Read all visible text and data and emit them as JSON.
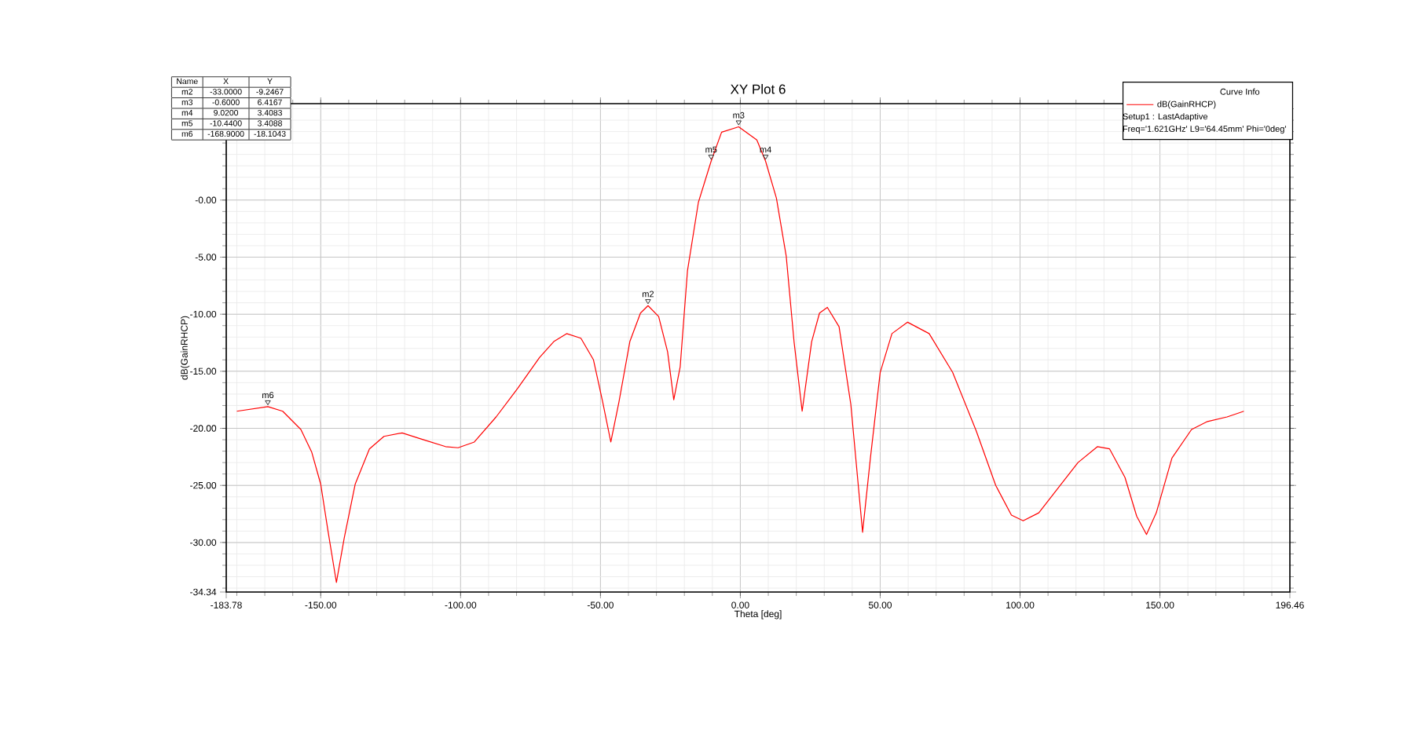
{
  "chart_data": {
    "type": "line",
    "title": "XY Plot 6",
    "xlabel": "Theta [deg]",
    "ylabel": "dB(GainRHCP)",
    "legend_title": "Curve Info",
    "legend": "top right",
    "grid": true,
    "xlim": [
      -183.78,
      196.46
    ],
    "ylim": [
      -34.34,
      8.45
    ],
    "xticks": [
      {
        "value": -183.78,
        "label": "-183.78"
      },
      {
        "value": -150,
        "label": "-150.00"
      },
      {
        "value": -100,
        "label": "-100.00"
      },
      {
        "value": -50,
        "label": "-50.00"
      },
      {
        "value": 0,
        "label": "0.00"
      },
      {
        "value": 50,
        "label": "50.00"
      },
      {
        "value": 100,
        "label": "100.00"
      },
      {
        "value": 150,
        "label": "150.00"
      },
      {
        "value": 196.46,
        "label": "196.46"
      }
    ],
    "yticks": [
      {
        "value": -34.34,
        "label": "-34.34"
      },
      {
        "value": -30,
        "label": "-30.00"
      },
      {
        "value": -25,
        "label": "-25.00"
      },
      {
        "value": -20,
        "label": "-20.00"
      },
      {
        "value": -15,
        "label": "-15.00"
      },
      {
        "value": -10,
        "label": "-10.00"
      },
      {
        "value": -5,
        "label": "-5.00"
      },
      {
        "value": 0,
        "label": "-0.00"
      }
    ],
    "series": [
      {
        "name": "dB(GainRHCP)",
        "color": "#ff0000",
        "x": [
          -180,
          -168.9,
          -163.6,
          -157.1,
          -153.2,
          -150,
          -147.4,
          -144.4,
          -141.6,
          -137.7,
          -132.6,
          -127.4,
          -120.9,
          -113.2,
          -105.4,
          -100.9,
          -95.1,
          -87.3,
          -79.6,
          -71.8,
          -66.7,
          -62.1,
          -57.0,
          -52.5,
          -49.2,
          -46.3,
          -43.4,
          -39.5,
          -35.7,
          -33.0,
          -29.2,
          -26.0,
          -23.8,
          -21.5,
          -18.9,
          -15.0,
          -10.44,
          -6.7,
          -0.6,
          5.9,
          9.02,
          12.9,
          16.4,
          19.2,
          22.1,
          25.5,
          28.3,
          31.1,
          35.3,
          39.5,
          43.7,
          46.5,
          50,
          54.2,
          59.8,
          67.5,
          75.9,
          84.3,
          91.3,
          96.9,
          101.1,
          106.7,
          113.7,
          120.7,
          127.7,
          132.0,
          137.5,
          141.7,
          145.2,
          148.7,
          154.3,
          161.3,
          167.0,
          174.0,
          180
        ],
        "values": [
          -18.5,
          -18.1,
          -18.5,
          -20.1,
          -22.1,
          -24.9,
          -29.0,
          -33.5,
          -29.6,
          -24.9,
          -21.8,
          -20.7,
          -20.4,
          -21.0,
          -21.6,
          -21.7,
          -21.2,
          -19.0,
          -16.5,
          -13.8,
          -12.4,
          -11.7,
          -12.1,
          -14.0,
          -17.7,
          -21.2,
          -17.7,
          -12.4,
          -9.9,
          -9.25,
          -10.2,
          -13.3,
          -17.5,
          -14.6,
          -6.2,
          -0.2,
          3.41,
          5.95,
          6.42,
          5.27,
          3.41,
          0.17,
          -4.9,
          -12.4,
          -18.5,
          -12.4,
          -9.9,
          -9.4,
          -11.1,
          -17.9,
          -29.1,
          -22.6,
          -15.1,
          -11.7,
          -10.7,
          -11.7,
          -15.1,
          -20.2,
          -25.0,
          -27.6,
          -28.1,
          -27.4,
          -25.2,
          -23.0,
          -21.6,
          -21.8,
          -24.3,
          -27.7,
          -29.3,
          -27.4,
          -22.6,
          -20.1,
          -19.4,
          -19.0,
          -18.5
        ]
      }
    ],
    "annotations": [
      "Setup1 : LastAdaptive",
      "Freq='1.621GHz' L9='64.45mm' Phi='0deg'",
      "Name",
      "X",
      "Y",
      "m2",
      "-33.0000",
      "-9.2467",
      "m3",
      "-0.6000",
      "6.4167",
      "m4",
      "9.0200",
      "3.4083",
      "m5",
      "-10.4400",
      "3.4088",
      "m6",
      "-168.9000",
      "-18.1043",
      {
        "text": "m2",
        "x": -33.0,
        "y": -9.2467
      },
      {
        "text": "m3",
        "x": -0.6,
        "y": 6.4167
      },
      {
        "text": "m4",
        "x": 9.02,
        "y": 3.4083
      },
      {
        "text": "m5",
        "x": -10.44,
        "y": 3.4088
      },
      {
        "text": "m6",
        "x": -168.9,
        "y": -18.1043
      }
    ]
  }
}
